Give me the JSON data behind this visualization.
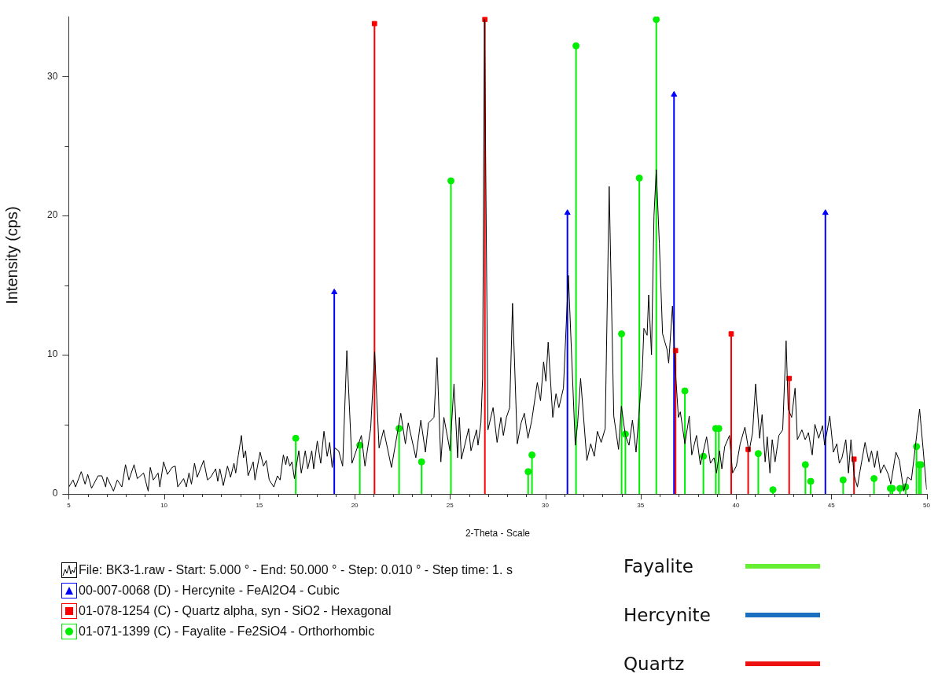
{
  "chart_data": {
    "type": "line",
    "xlabel": "2-Theta - Scale",
    "ylabel": "Intensity (cps)",
    "xlim": [
      5,
      50
    ],
    "ylim": [
      0,
      34.3
    ],
    "xticks": [
      5,
      {
        "value": 6,
        "label": null
      },
      {
        "value": 7,
        "label": null
      },
      {
        "value": 8,
        "label": null
      },
      {
        "value": 9,
        "label": null
      },
      10,
      {
        "value": 11,
        "label": null
      },
      {
        "value": 12,
        "label": null
      },
      {
        "value": 13,
        "label": null
      },
      {
        "value": 14,
        "label": null
      },
      15,
      {
        "value": 16,
        "label": null
      },
      {
        "value": 17,
        "label": null
      },
      {
        "value": 18,
        "label": null
      },
      {
        "value": 19,
        "label": null
      },
      20,
      {
        "value": 21,
        "label": null
      },
      {
        "value": 22,
        "label": null
      },
      {
        "value": 23,
        "label": null
      },
      {
        "value": 24,
        "label": null
      },
      25,
      {
        "value": 26,
        "label": null
      },
      {
        "value": 27,
        "label": null
      },
      {
        "value": 28,
        "label": null
      },
      {
        "value": 29,
        "label": null
      },
      30,
      {
        "value": 31,
        "label": null
      },
      {
        "value": 32,
        "label": null
      },
      {
        "value": 33,
        "label": null
      },
      {
        "value": 34,
        "label": null
      },
      35,
      {
        "value": 36,
        "label": null
      },
      {
        "value": 37,
        "label": null
      },
      {
        "value": 38,
        "label": null
      },
      {
        "value": 39,
        "label": null
      },
      40,
      {
        "value": 41,
        "label": null
      },
      {
        "value": 42,
        "label": null
      },
      {
        "value": 43,
        "label": null
      },
      {
        "value": 44,
        "label": null
      },
      45,
      {
        "value": 46,
        "label": null
      },
      {
        "value": 47,
        "label": null
      },
      {
        "value": 48,
        "label": null
      },
      {
        "value": 49,
        "label": null
      },
      50
    ],
    "yticks": [
      0,
      {
        "value": 5,
        "label": null
      },
      10,
      {
        "value": 15,
        "label": null
      },
      20,
      {
        "value": 25,
        "label": null
      },
      30
    ],
    "grid": false,
    "legend": "bottom",
    "annotations": [
      "Fayalite",
      "Hercynite",
      "Quartz"
    ],
    "series": [
      {
        "name": "File: BK3-1.raw - Start: 5.000 ° - End: 50.000 ° - Step: 0.010 ° - Step time: 1. s",
        "type": "line",
        "color": "#000000",
        "marker": "none",
        "x": [
          5.01,
          5.23,
          5.36,
          5.66,
          5.86,
          6.0,
          6.2,
          6.54,
          6.74,
          6.94,
          7.01,
          7.35,
          7.55,
          7.79,
          7.98,
          8.16,
          8.43,
          8.6,
          8.93,
          9.17,
          9.28,
          9.44,
          9.69,
          9.78,
          9.98,
          10.18,
          10.42,
          10.59,
          10.72,
          11.03,
          11.17,
          11.31,
          11.44,
          11.6,
          11.74,
          12.08,
          12.28,
          12.45,
          12.71,
          12.82,
          12.93,
          13.11,
          13.33,
          13.49,
          13.67,
          13.76,
          13.9,
          14.06,
          14.17,
          14.28,
          14.41,
          14.68,
          14.77,
          15.04,
          15.22,
          15.36,
          15.52,
          15.76,
          15.95,
          16.09,
          16.26,
          16.39,
          16.46,
          16.6,
          16.71,
          16.84,
          17.07,
          17.2,
          17.41,
          17.54,
          17.75,
          17.85,
          18.04,
          18.22,
          18.39,
          18.56,
          18.69,
          18.82,
          18.96,
          19.16,
          19.37,
          19.59,
          19.86,
          20.35,
          20.54,
          20.84,
          21.05,
          21.28,
          21.52,
          21.93,
          22.42,
          22.66,
          22.81,
          23.21,
          23.47,
          23.71,
          23.87,
          24.16,
          24.32,
          24.52,
          24.68,
          25.0,
          25.21,
          25.4,
          25.49,
          25.6,
          25.98,
          26.1,
          26.39,
          26.47,
          26.62,
          26.71,
          26.81,
          26.99,
          27.26,
          27.47,
          27.67,
          27.8,
          27.96,
          28.13,
          28.28,
          28.53,
          28.73,
          28.9,
          29.09,
          29.29,
          29.58,
          29.75,
          29.91,
          30.03,
          30.15,
          30.39,
          30.56,
          30.71,
          30.95,
          31.21,
          31.57,
          31.69,
          31.85,
          32.18,
          32.38,
          32.57,
          32.73,
          32.93,
          33.14,
          33.35,
          33.59,
          33.84,
          33.99,
          34.2,
          34.39,
          34.57,
          34.76,
          35.09,
          35.17,
          35.34,
          35.42,
          35.57,
          35.7,
          35.82,
          35.98,
          36.15,
          36.38,
          36.47,
          36.67,
          36.83,
          36.98,
          37.08,
          37.32,
          37.55,
          37.68,
          37.93,
          38.13,
          38.46,
          38.66,
          38.85,
          38.98,
          39.14,
          39.26,
          39.41,
          39.66,
          39.82,
          40.02,
          40.22,
          40.47,
          40.68,
          40.87,
          41.03,
          41.24,
          41.37,
          41.53,
          41.64,
          41.78,
          41.9,
          42.05,
          42.25,
          42.45,
          42.63,
          42.74,
          42.92,
          43.1,
          43.22,
          43.46,
          43.63,
          43.8,
          44.0,
          44.14,
          44.34,
          44.54,
          44.65,
          44.92,
          45.11,
          45.29,
          45.42,
          45.56,
          45.76,
          45.9,
          46.03,
          46.2,
          46.37,
          46.5,
          46.77,
          46.97,
          47.11,
          47.27,
          47.41,
          47.58,
          47.76,
          47.99,
          48.12,
          48.39,
          48.57,
          48.8,
          49.0,
          49.2,
          49.4,
          49.63,
          49.81,
          50.0
        ],
        "values": [
          0.5,
          1.0,
          0.5,
          1.6,
          0.7,
          1.4,
          0.4,
          1.3,
          1.3,
          0.5,
          1.2,
          0.2,
          1.0,
          0.5,
          2.1,
          1.0,
          2.1,
          1.1,
          1.5,
          0.2,
          1.9,
          1.0,
          1.5,
          0.5,
          2.3,
          1.4,
          1.9,
          2.0,
          0.5,
          1.1,
          0.5,
          1.5,
          0.7,
          2.2,
          1.2,
          2.4,
          1.0,
          1.2,
          1.8,
          0.9,
          1.8,
          0.6,
          2.0,
          1.2,
          2.2,
          1.5,
          2.8,
          4.2,
          2.6,
          3.1,
          1.3,
          2.3,
          1.0,
          3.0,
          2.0,
          2.4,
          1.0,
          0.5,
          1.3,
          1.0,
          2.8,
          2.1,
          2.7,
          2.0,
          2.3,
          1.1,
          3.1,
          1.5,
          3.1,
          1.8,
          3.1,
          1.8,
          3.8,
          2.2,
          4.5,
          2.7,
          3.7,
          1.9,
          3.3,
          3.1,
          2.0,
          10.3,
          2.2,
          4.2,
          2.0,
          4.7,
          10.2,
          3.3,
          4.6,
          1.9,
          5.8,
          3.6,
          5.1,
          2.6,
          5.3,
          3.0,
          5.1,
          5.5,
          9.8,
          2.3,
          5.5,
          3.1,
          7.9,
          2.6,
          5.5,
          2.5,
          4.7,
          3.1,
          4.6,
          3.5,
          5.1,
          8.3,
          34.1,
          4.6,
          6.2,
          3.7,
          5.5,
          4.2,
          5.5,
          6.2,
          13.7,
          3.6,
          5.1,
          5.8,
          4.0,
          5.3,
          8.0,
          6.7,
          9.5,
          8.1,
          10.9,
          5.5,
          7.2,
          6.2,
          7.6,
          15.7,
          3.5,
          5.0,
          8.3,
          2.4,
          3.6,
          2.7,
          4.5,
          3.7,
          4.7,
          22.1,
          5.6,
          3.2,
          6.3,
          4.2,
          3.5,
          5.3,
          3.0,
          9.0,
          11.9,
          11.4,
          14.3,
          10.0,
          20.0,
          23.3,
          18.0,
          11.5,
          10.4,
          9.4,
          13.5,
          8.7,
          5.5,
          5.9,
          3.6,
          5.6,
          2.8,
          4.2,
          2.1,
          4.1,
          2.2,
          2.6,
          1.5,
          3.1,
          1.8,
          3.4,
          4.2,
          1.5,
          2.0,
          3.6,
          4.8,
          3.0,
          4.4,
          7.9,
          4.0,
          5.7,
          2.3,
          4.1,
          1.5,
          3.9,
          2.3,
          4.2,
          4.6,
          11.0,
          6.1,
          5.5,
          7.6,
          3.9,
          4.6,
          3.9,
          4.4,
          2.8,
          5.0,
          4.0,
          4.9,
          3.5,
          5.6,
          3.0,
          3.6,
          2.2,
          2.6,
          3.9,
          1.5,
          3.9,
          1.3,
          0.5,
          1.6,
          3.7,
          2.3,
          3.1,
          1.9,
          3.1,
          1.5,
          2.1,
          1.4,
          0.7,
          3.0,
          2.4,
          0.2,
          1.2,
          1.0,
          3.3,
          6.1,
          3.3,
          0.3
        ]
      },
      {
        "name": "00-007-0068 (D) - Hercynite - FeAl2O4 - Cubic",
        "type": "lollipop",
        "color": "#0000ff",
        "marker": "triangle",
        "x": [
          18.93,
          31.16,
          36.75,
          44.69
        ],
        "values": [
          14.5,
          20.2,
          28.7,
          20.2
        ]
      },
      {
        "name": "01-078-1254 (C) - Quartz alpha, syn - SiO2 - Hexagonal",
        "type": "lollipop",
        "color": "#ff0000",
        "marker": "square",
        "x": [
          21.04,
          26.83,
          36.83,
          39.75,
          40.64,
          42.79,
          46.19
        ],
        "values": [
          33.8,
          34.1,
          10.3,
          11.5,
          3.2,
          8.3,
          2.5
        ]
      },
      {
        "name": "01-071-1399 (C) - Fayalite - Fe2SiO4 - Orthorhombic",
        "type": "lollipop",
        "color": "#00ee00",
        "marker": "circle",
        "x": [
          16.91,
          20.27,
          22.33,
          23.51,
          25.05,
          29.1,
          29.3,
          31.61,
          34.0,
          34.2,
          34.93,
          35.82,
          37.32,
          38.29,
          38.94,
          39.1,
          41.17,
          41.94,
          43.64,
          43.92,
          45.62,
          47.24,
          48.1,
          48.2,
          48.6,
          48.9,
          49.47,
          49.6,
          49.7
        ],
        "values": [
          4.0,
          3.5,
          4.7,
          2.3,
          22.5,
          1.6,
          2.8,
          32.2,
          11.5,
          4.3,
          22.7,
          34.1,
          7.4,
          2.7,
          4.7,
          4.7,
          2.9,
          0.3,
          2.1,
          0.9,
          1.0,
          1.1,
          0.4,
          0.4,
          0.4,
          0.5,
          3.4,
          2.1,
          2.1
        ]
      }
    ]
  }
}
